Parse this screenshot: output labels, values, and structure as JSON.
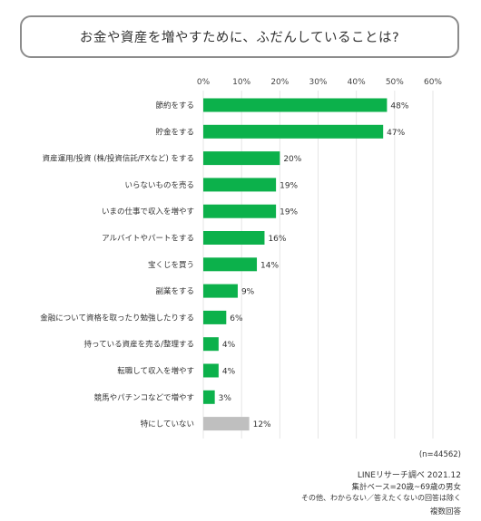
{
  "chart_data": {
    "type": "bar",
    "orientation": "horizontal",
    "title": "お金や資産を増やすために、ふだんしていることは?",
    "categories": [
      "節約をする",
      "貯金をする",
      "資産運用/投資 (株/投資信託/FXなど) をする",
      "いらないものを売る",
      "いまの仕事で収入を増やす",
      "アルバイトやパートをする",
      "宝くじを買う",
      "副業をする",
      "金融について資格を取ったり勉強したりする",
      "持っている資産を売る/整理する",
      "転職して収入を増やす",
      "競馬やパチンコなどで増やす",
      "特にしていない"
    ],
    "values": [
      48,
      47,
      20,
      19,
      19,
      16,
      14,
      9,
      6,
      4,
      4,
      3,
      12
    ],
    "value_labels": [
      "48%",
      "47%",
      "20%",
      "19%",
      "19%",
      "16%",
      "14%",
      "9%",
      "6%",
      "4%",
      "4%",
      "3%",
      "12%"
    ],
    "bar_colors": [
      "#0cb14b",
      "#0cb14b",
      "#0cb14b",
      "#0cb14b",
      "#0cb14b",
      "#0cb14b",
      "#0cb14b",
      "#0cb14b",
      "#0cb14b",
      "#0cb14b",
      "#0cb14b",
      "#0cb14b",
      "#bfbfbf"
    ],
    "xlim": [
      0,
      60
    ],
    "xticks": [
      "0%",
      "10%",
      "20%",
      "30%",
      "40%",
      "50%",
      "60%"
    ],
    "grid": true
  },
  "footer": {
    "n": "(n=44562)",
    "source": "LINEリサーチ調べ 2021.12",
    "base": "集計ベース=20歳~69歳の男女",
    "note": "その他、わからない／答えたくないの回答は除く",
    "multi": "複数回答"
  }
}
